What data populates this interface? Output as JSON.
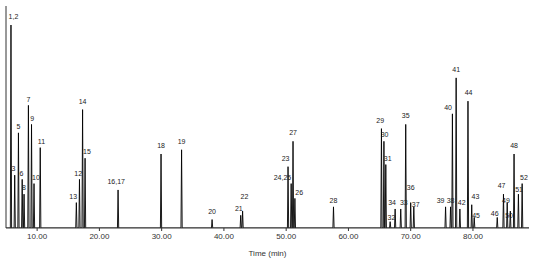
{
  "chart_data": {
    "type": "line",
    "x_label": "Time (min)",
    "color": "#000000",
    "grid": false,
    "tick_labels": "x",
    "xlim": [
      5,
      89
    ],
    "ylim": [
      0,
      105
    ],
    "xticks": [
      {
        "value": 10,
        "label": "10.00"
      },
      {
        "value": 20,
        "label": "20.00"
      },
      {
        "value": 30,
        "label": "30.00"
      },
      {
        "value": 40,
        "label": "40.00"
      },
      {
        "value": 50,
        "label": "50.00"
      },
      {
        "value": 60,
        "label": "60.00"
      },
      {
        "value": 70,
        "label": "70.00"
      },
      {
        "value": 80,
        "label": "80.00"
      }
    ],
    "x": [
      5,
      5.7,
      5.8,
      5.9,
      6.3,
      6.4,
      6.5,
      6.9,
      7.0,
      7.1,
      7.5,
      7.6,
      7.7,
      7.8,
      7.9,
      8.0,
      8.5,
      8.6,
      8.7,
      9.0,
      9.1,
      9.2,
      9.4,
      9.5,
      9.6,
      10.4,
      10.5,
      10.6,
      16.2,
      16.3,
      16.4,
      16.7,
      16.8,
      16.9,
      17.2,
      17.3,
      17.4,
      17.6,
      17.7,
      17.8,
      22.9,
      23.0,
      23.1,
      29.8,
      29.9,
      30.0,
      33.1,
      33.2,
      33.3,
      38.0,
      38.1,
      38.2,
      42.6,
      42.7,
      42.8,
      42.9,
      43.0,
      43.1,
      50.2,
      50.3,
      50.4,
      50.7,
      50.8,
      50.9,
      51.0,
      51.1,
      51.2,
      51.3,
      51.4,
      51.5,
      57.5,
      57.6,
      57.7,
      65.2,
      65.3,
      65.4,
      65.6,
      65.7,
      65.8,
      65.9,
      66.0,
      66.1,
      66.6,
      66.7,
      66.8,
      67.4,
      67.5,
      67.6,
      68.3,
      68.4,
      68.5,
      69.1,
      69.2,
      69.3,
      69.9,
      70.0,
      70.1,
      70.4,
      70.5,
      70.6,
      75.5,
      75.6,
      75.7,
      76.3,
      76.4,
      76.5,
      76.6,
      76.7,
      76.8,
      77.2,
      77.3,
      77.4,
      77.8,
      77.9,
      78.0,
      79.1,
      79.2,
      79.3,
      79.7,
      79.8,
      79.9,
      80.1,
      80.2,
      80.3,
      83.8,
      83.9,
      84.0,
      84.8,
      84.9,
      85.0,
      85.4,
      85.5,
      85.6,
      85.9,
      86.0,
      86.1,
      86.5,
      86.6,
      86.7,
      87.2,
      87.3,
      87.4,
      87.8,
      87.9,
      88.0,
      89
    ],
    "values": [
      0,
      0,
      96,
      0,
      0,
      25,
      0,
      0,
      45,
      0,
      0,
      23,
      0,
      0,
      16,
      0,
      0,
      58,
      0,
      0,
      49,
      0,
      0,
      21,
      0,
      0,
      38,
      0,
      0,
      12,
      0,
      0,
      23,
      0,
      0,
      56,
      0,
      0,
      33,
      0,
      0,
      18,
      0,
      0,
      35,
      0,
      0,
      37,
      0,
      0,
      4,
      0,
      0,
      6,
      0,
      0,
      8,
      0,
      0,
      29,
      0,
      0,
      21,
      0,
      0,
      41,
      0,
      0,
      14,
      0,
      0,
      10,
      0,
      0,
      47,
      0,
      0,
      41,
      0,
      0,
      30,
      0,
      0,
      3,
      0,
      0,
      9,
      0,
      0,
      9,
      0,
      0,
      49,
      0,
      0,
      12,
      0,
      0,
      10,
      0,
      0,
      10,
      0,
      0,
      10,
      0,
      0,
      54,
      0,
      0,
      71,
      0,
      0,
      9,
      0,
      0,
      60,
      0,
      0,
      11,
      0,
      0,
      5,
      0,
      0,
      5,
      0,
      0,
      16,
      0,
      0,
      12,
      0,
      0,
      8,
      0,
      0,
      35,
      0,
      0,
      16,
      0,
      0,
      21,
      0,
      0
    ],
    "annotations": [
      {
        "text": "1,2",
        "x": 6.2,
        "y": 100
      },
      {
        "text": "3",
        "x": 6.2,
        "y": 28
      },
      {
        "text": "5",
        "x": 7.0,
        "y": 48
      },
      {
        "text": "6",
        "x": 7.5,
        "y": 26
      },
      {
        "text": "8",
        "x": 7.9,
        "y": 19
      },
      {
        "text": "7",
        "x": 8.6,
        "y": 61
      },
      {
        "text": "9",
        "x": 9.2,
        "y": 52
      },
      {
        "text": "10",
        "x": 9.8,
        "y": 24
      },
      {
        "text": "11",
        "x": 10.7,
        "y": 41
      },
      {
        "text": "12",
        "x": 16.6,
        "y": 26
      },
      {
        "text": "13",
        "x": 15.8,
        "y": 15
      },
      {
        "text": "14",
        "x": 17.3,
        "y": 60
      },
      {
        "text": "15",
        "x": 18.0,
        "y": 36
      },
      {
        "text": "16,17",
        "x": 22.7,
        "y": 22
      },
      {
        "text": "18",
        "x": 29.9,
        "y": 39
      },
      {
        "text": "19",
        "x": 33.2,
        "y": 41
      },
      {
        "text": "20",
        "x": 38.1,
        "y": 8
      },
      {
        "text": "21",
        "x": 42.4,
        "y": 9
      },
      {
        "text": "22",
        "x": 43.3,
        "y": 15
      },
      {
        "text": "23",
        "x": 49.9,
        "y": 33
      },
      {
        "text": "24,25",
        "x": 49.4,
        "y": 24
      },
      {
        "text": "26",
        "x": 52.1,
        "y": 17
      },
      {
        "text": "27",
        "x": 51.1,
        "y": 45
      },
      {
        "text": "28",
        "x": 57.6,
        "y": 13
      },
      {
        "text": "29",
        "x": 65.1,
        "y": 51
      },
      {
        "text": "30",
        "x": 65.8,
        "y": 44
      },
      {
        "text": "31",
        "x": 66.3,
        "y": 33
      },
      {
        "text": "32",
        "x": 66.9,
        "y": 5
      },
      {
        "text": "34",
        "x": 67.0,
        "y": 12
      },
      {
        "text": "33",
        "x": 68.9,
        "y": 12
      },
      {
        "text": "35",
        "x": 69.2,
        "y": 53
      },
      {
        "text": "36",
        "x": 70.0,
        "y": 19
      },
      {
        "text": "37",
        "x": 70.8,
        "y": 11
      },
      {
        "text": "39",
        "x": 74.8,
        "y": 13
      },
      {
        "text": "38",
        "x": 76.4,
        "y": 13
      },
      {
        "text": "40",
        "x": 76.0,
        "y": 57
      },
      {
        "text": "41",
        "x": 77.3,
        "y": 75
      },
      {
        "text": "42",
        "x": 78.2,
        "y": 12
      },
      {
        "text": "43",
        "x": 80.4,
        "y": 15
      },
      {
        "text": "44",
        "x": 79.3,
        "y": 64
      },
      {
        "text": "45",
        "x": 80.5,
        "y": 6
      },
      {
        "text": "46",
        "x": 83.5,
        "y": 7
      },
      {
        "text": "47",
        "x": 84.6,
        "y": 20
      },
      {
        "text": "49",
        "x": 85.3,
        "y": 13
      },
      {
        "text": "50",
        "x": 85.8,
        "y": 6
      },
      {
        "text": "48",
        "x": 86.6,
        "y": 39
      },
      {
        "text": "51",
        "x": 87.4,
        "y": 18
      },
      {
        "text": "52",
        "x": 88.2,
        "y": 24
      }
    ]
  }
}
